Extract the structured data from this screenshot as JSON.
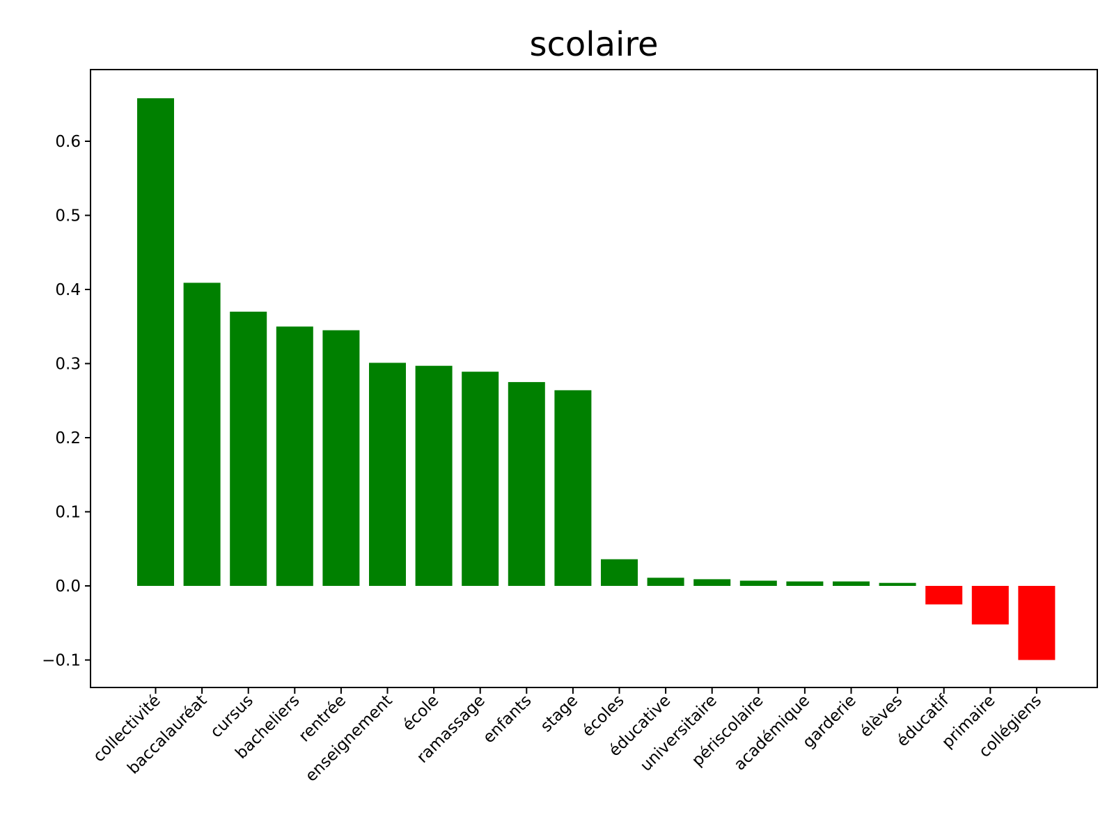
{
  "chart_data": {
    "type": "bar",
    "title": "scolaire",
    "xlabel": "",
    "ylabel": "",
    "ylim": [
      -0.14,
      0.69
    ],
    "yticks": [
      -0.1,
      0.0,
      0.1,
      0.2,
      0.3,
      0.4,
      0.5,
      0.6
    ],
    "ytick_labels": [
      "−0.1",
      "0.0",
      "0.1",
      "0.2",
      "0.3",
      "0.4",
      "0.5",
      "0.6"
    ],
    "grid": false,
    "positive_color": "#008000",
    "negative_color": "#ff0000",
    "categories": [
      "collectivité",
      "baccalauréat",
      "cursus",
      "bacheliers",
      "rentrée",
      "enseignement",
      "école",
      "ramassage",
      "enfants",
      "stage",
      "écoles",
      "éducative",
      "universitaire",
      "périscolaire",
      "académique",
      "garderie",
      "élèves",
      "éducatif",
      "primaire",
      "collégiens"
    ],
    "values": [
      0.658,
      0.409,
      0.37,
      0.35,
      0.345,
      0.301,
      0.297,
      0.289,
      0.275,
      0.264,
      0.036,
      0.011,
      0.009,
      0.007,
      0.006,
      0.006,
      0.004,
      -0.025,
      -0.052,
      -0.1
    ]
  }
}
